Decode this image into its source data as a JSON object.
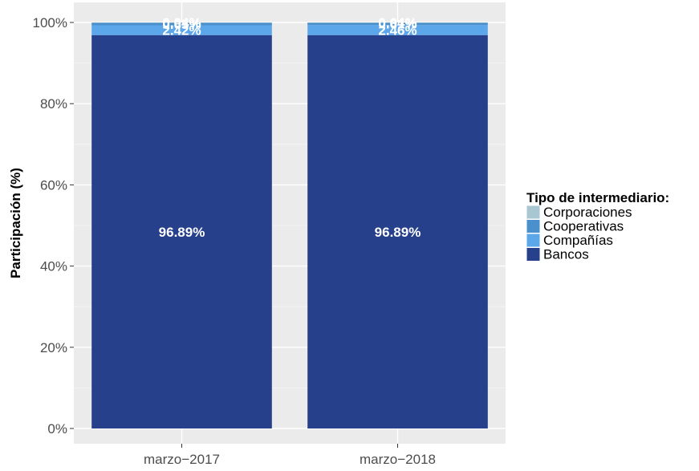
{
  "chart_data": {
    "type": "bar",
    "stacked": true,
    "percent": true,
    "title": "",
    "xlabel": "",
    "ylabel": "Participación (%)",
    "ylim": [
      0,
      100
    ],
    "yticks": [
      "0%",
      "20%",
      "40%",
      "60%",
      "80%",
      "100%"
    ],
    "categories": [
      "marzo−2017",
      "marzo−2018"
    ],
    "series": [
      {
        "name": "Bancos",
        "color": "#26408b",
        "values": [
          96.89,
          96.89
        ],
        "labels": [
          "96.89%",
          "96.89%"
        ]
      },
      {
        "name": "Compañías",
        "color": "#5ba7ea",
        "values": [
          2.42,
          2.46
        ],
        "labels": [
          "2.42%",
          "2.46%"
        ]
      },
      {
        "name": "Cooperativas",
        "color": "#4a90cd",
        "values": [
          0.65,
          0.61
        ],
        "labels": [
          "0.65%",
          "0.61%"
        ]
      },
      {
        "name": "Corporaciones",
        "color": "#a9c6d3",
        "values": [
          0.04,
          0.04
        ],
        "labels": [
          "0.04%",
          "0.04%"
        ]
      }
    ],
    "legend": {
      "title": "Tipo de intermediario:",
      "position": "right",
      "items": [
        "Corporaciones",
        "Cooperativas",
        "Compañías",
        "Bancos"
      ]
    },
    "grid": true,
    "panel_background": "#ebebeb"
  }
}
